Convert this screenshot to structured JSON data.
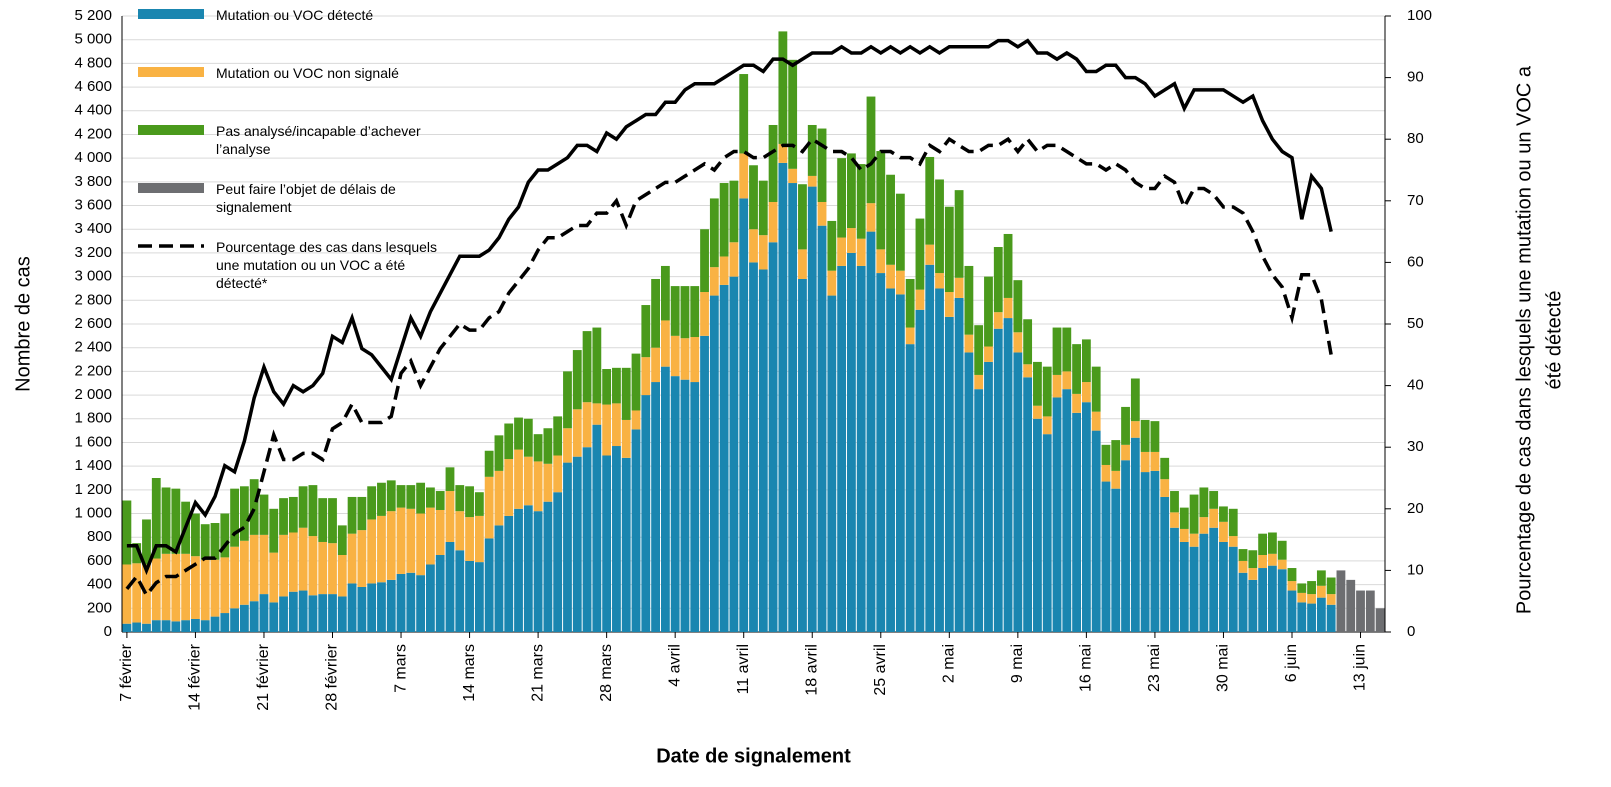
{
  "chart_data": {
    "type": "bar",
    "stacked": true,
    "xlabel": "Date de signalement",
    "ylabel": "Nombre de cas",
    "y2label": [
      "Pourcentage de cas dans lesquels une mutation ou un VOC a",
      "été détecté"
    ],
    "categories": [
      "7 février",
      null,
      null,
      null,
      null,
      null,
      null,
      "14 février",
      null,
      null,
      null,
      null,
      null,
      null,
      "21 février",
      null,
      null,
      null,
      null,
      null,
      null,
      "28 février",
      null,
      null,
      null,
      null,
      null,
      null,
      "7 mars",
      null,
      null,
      null,
      null,
      null,
      null,
      "14 mars",
      null,
      null,
      null,
      null,
      null,
      null,
      "21 mars",
      null,
      null,
      null,
      null,
      null,
      null,
      "28 mars",
      null,
      null,
      null,
      null,
      null,
      null,
      "4 avril",
      null,
      null,
      null,
      null,
      null,
      null,
      "11 avril",
      null,
      null,
      null,
      null,
      null,
      null,
      "18 avril",
      null,
      null,
      null,
      null,
      null,
      null,
      "25 avril",
      null,
      null,
      null,
      null,
      null,
      null,
      "2 mai",
      null,
      null,
      null,
      null,
      null,
      null,
      "9 mai",
      null,
      null,
      null,
      null,
      null,
      null,
      "16 mai",
      null,
      null,
      null,
      null,
      null,
      null,
      "23 mai",
      null,
      null,
      null,
      null,
      null,
      null,
      "30 mai",
      null,
      null,
      null,
      null,
      null,
      null,
      "6 juin",
      null,
      null,
      null,
      null,
      null,
      null,
      "13 juin",
      null,
      null
    ],
    "ylim": [
      0,
      5200
    ],
    "yticks": [
      0,
      200,
      400,
      600,
      800,
      {
        "value": 1000,
        "label": "1 000"
      },
      {
        "value": 1200,
        "label": "1 200"
      },
      {
        "value": 1400,
        "label": "1 400"
      },
      {
        "value": 1600,
        "label": "1 600"
      },
      {
        "value": 1800,
        "label": "1 800"
      },
      {
        "value": 2000,
        "label": "2 000"
      },
      {
        "value": 2200,
        "label": "2 200"
      },
      {
        "value": 2400,
        "label": "2 400"
      },
      {
        "value": 2600,
        "label": "2 600"
      },
      {
        "value": 2800,
        "label": "2 800"
      },
      {
        "value": 3000,
        "label": "3 000"
      },
      {
        "value": 3200,
        "label": "3 200"
      },
      {
        "value": 3400,
        "label": "3 400"
      },
      {
        "value": 3600,
        "label": "3 600"
      },
      {
        "value": 3800,
        "label": "3 800"
      },
      {
        "value": 4000,
        "label": "4 000"
      },
      {
        "value": 4200,
        "label": "4 200"
      },
      {
        "value": 4400,
        "label": "4 400"
      },
      {
        "value": 4600,
        "label": "4 600"
      },
      {
        "value": 4800,
        "label": "4 800"
      },
      {
        "value": 5000,
        "label": "5 000"
      },
      {
        "value": 5200,
        "label": "5 200"
      }
    ],
    "y2lim": [
      0,
      100
    ],
    "y2ticks": [
      0,
      10,
      20,
      30,
      40,
      50,
      60,
      70,
      80,
      90,
      100
    ],
    "grid": true,
    "series": [
      {
        "name": "Mutation ou VOC détecté",
        "color": "#1a86b0",
        "values": [
          70,
          80,
          70,
          100,
          100,
          90,
          100,
          110,
          100,
          130,
          160,
          200,
          230,
          260,
          320,
          250,
          300,
          340,
          350,
          310,
          320,
          320,
          300,
          410,
          380,
          410,
          420,
          440,
          490,
          500,
          480,
          570,
          650,
          760,
          690,
          600,
          590,
          790,
          900,
          980,
          1040,
          1070,
          1020,
          1100,
          1180,
          1430,
          1480,
          1560,
          1750,
          1490,
          1570,
          1470,
          1710,
          2000,
          2110,
          2240,
          2160,
          2130,
          2110,
          2500,
          2840,
          2930,
          3000,
          3660,
          3120,
          3060,
          3290,
          3960,
          3790,
          2980,
          3760,
          3430,
          2840,
          3090,
          3200,
          3090,
          3380,
          3030,
          2900,
          2850,
          2430,
          2720,
          3100,
          2900,
          2660,
          2820,
          2360,
          2050,
          2280,
          2560,
          2650,
          2360,
          2150,
          1800,
          1670,
          1980,
          2050,
          1850,
          1940,
          1700,
          1270,
          1210,
          1450,
          1640,
          1350,
          1360,
          1140,
          880,
          760,
          720,
          830,
          880,
          760,
          720,
          500,
          440,
          540,
          560,
          530,
          350,
          250,
          240,
          290,
          230,
          null,
          null,
          null,
          null,
          null
        ]
      },
      {
        "name": "Mutation ou VOC non signalé",
        "color": "#f9b243",
        "values": [
          500,
          500,
          500,
          520,
          560,
          570,
          560,
          530,
          510,
          480,
          470,
          520,
          540,
          560,
          500,
          420,
          520,
          500,
          530,
          500,
          440,
          430,
          350,
          420,
          480,
          540,
          560,
          580,
          560,
          540,
          520,
          480,
          380,
          430,
          330,
          370,
          390,
          520,
          460,
          480,
          500,
          410,
          420,
          320,
          310,
          290,
          400,
          380,
          180,
          430,
          360,
          320,
          160,
          320,
          290,
          390,
          340,
          350,
          380,
          370,
          240,
          240,
          290,
          380,
          280,
          290,
          340,
          160,
          120,
          250,
          90,
          200,
          210,
          240,
          210,
          230,
          240,
          200,
          200,
          200,
          140,
          170,
          170,
          130,
          210,
          170,
          150,
          120,
          130,
          140,
          170,
          170,
          110,
          110,
          150,
          190,
          150,
          160,
          170,
          160,
          140,
          150,
          130,
          140,
          170,
          160,
          150,
          130,
          110,
          110,
          140,
          160,
          170,
          90,
          100,
          100,
          110,
          100,
          80,
          80,
          80,
          80,
          100,
          90,
          null,
          null,
          null,
          null,
          null
        ]
      },
      {
        "name": "Pas analysé/incapable d’achever l’analyse",
        "color": "#4a9a1c",
        "values": [
          540,
          170,
          380,
          680,
          560,
          550,
          440,
          360,
          300,
          310,
          370,
          490,
          460,
          470,
          340,
          370,
          310,
          300,
          350,
          430,
          370,
          380,
          250,
          310,
          280,
          280,
          280,
          260,
          190,
          200,
          260,
          170,
          160,
          200,
          220,
          260,
          200,
          220,
          300,
          300,
          270,
          320,
          230,
          300,
          330,
          480,
          500,
          600,
          640,
          300,
          300,
          440,
          480,
          440,
          580,
          460,
          420,
          440,
          430,
          530,
          580,
          620,
          520,
          670,
          540,
          460,
          650,
          950,
          920,
          550,
          430,
          620,
          420,
          670,
          630,
          630,
          900,
          830,
          760,
          650,
          410,
          600,
          740,
          790,
          720,
          740,
          580,
          420,
          590,
          550,
          540,
          440,
          380,
          370,
          420,
          400,
          370,
          420,
          360,
          380,
          170,
          260,
          320,
          360,
          270,
          260,
          180,
          180,
          180,
          330,
          250,
          150,
          130,
          230,
          100,
          150,
          180,
          180,
          160,
          110,
          80,
          110,
          130,
          140,
          null,
          null,
          null,
          null,
          null
        ]
      },
      {
        "name": "Peut faire l’objet de délais de signalement",
        "color": "#6d6e71",
        "values": [
          null,
          null,
          null,
          null,
          null,
          null,
          null,
          null,
          null,
          null,
          null,
          null,
          null,
          null,
          null,
          null,
          null,
          null,
          null,
          null,
          null,
          null,
          null,
          null,
          null,
          null,
          null,
          null,
          null,
          null,
          null,
          null,
          null,
          null,
          null,
          null,
          null,
          null,
          null,
          null,
          null,
          null,
          null,
          null,
          null,
          null,
          null,
          null,
          null,
          null,
          null,
          null,
          null,
          null,
          null,
          null,
          null,
          null,
          null,
          null,
          null,
          null,
          null,
          null,
          null,
          null,
          null,
          null,
          null,
          null,
          null,
          null,
          null,
          null,
          null,
          null,
          null,
          null,
          null,
          null,
          null,
          null,
          null,
          null,
          null,
          null,
          null,
          null,
          null,
          null,
          null,
          null,
          null,
          null,
          null,
          null,
          null,
          null,
          null,
          null,
          null,
          null,
          null,
          null,
          null,
          null,
          null,
          null,
          null,
          null,
          null,
          null,
          null,
          null,
          null,
          null,
          null,
          null,
          null,
          null,
          null,
          null,
          null,
          null,
          520,
          440,
          350,
          350,
          200
        ]
      },
      {
        "name": "Pourcentage des cas dans lesquels une mutation ou un VOC a été détecté*",
        "type": "line",
        "axis": "y2",
        "style": "dashed",
        "color": "#000000",
        "values": [
          7,
          9,
          6,
          8,
          9,
          9,
          10,
          11,
          12,
          12,
          14,
          16,
          17,
          20,
          26,
          32,
          28,
          28,
          29,
          29,
          28,
          33,
          34,
          37,
          34,
          34,
          34,
          35,
          42,
          44,
          40,
          43,
          46,
          48,
          50,
          49,
          49,
          51,
          52,
          55,
          57,
          59,
          62,
          64,
          64,
          65,
          66,
          66,
          68,
          68,
          70,
          66,
          70,
          71,
          72,
          73,
          73,
          74,
          75,
          76,
          75,
          77,
          78,
          78,
          77,
          77,
          78,
          79,
          79,
          78,
          80,
          79,
          78,
          78,
          77,
          75,
          76,
          78,
          78,
          77,
          77,
          76,
          79,
          78,
          80,
          79,
          78,
          78,
          79,
          79,
          80,
          78,
          80,
          78,
          79,
          79,
          78,
          77,
          76,
          76,
          75,
          76,
          75,
          73,
          72,
          72,
          74,
          73,
          69,
          72,
          72,
          71,
          69,
          69,
          68,
          65,
          61,
          58,
          56,
          51,
          58,
          58,
          54,
          45,
          null,
          null,
          null,
          null,
          null
        ]
      },
      {
        "type": "line",
        "axis": "y2",
        "style": "solid",
        "color": "#000000",
        "values": [
          14,
          14,
          10,
          14,
          14,
          13,
          17,
          21,
          19,
          22,
          27,
          26,
          31,
          38,
          43,
          39,
          37,
          40,
          39,
          40,
          42,
          48,
          47,
          51,
          46,
          45,
          43,
          41,
          46,
          51,
          48,
          52,
          55,
          58,
          61,
          61,
          61,
          62,
          64,
          67,
          69,
          73,
          75,
          75,
          76,
          77,
          79,
          79,
          78,
          81,
          80,
          82,
          83,
          84,
          84,
          86,
          86,
          88,
          89,
          89,
          89,
          90,
          91,
          92,
          92,
          91,
          93,
          93,
          92,
          93,
          94,
          94,
          94,
          95,
          94,
          94,
          95,
          94,
          95,
          94,
          95,
          94,
          95,
          94,
          95,
          95,
          95,
          95,
          95,
          96,
          96,
          95,
          96,
          94,
          94,
          93,
          94,
          93,
          91,
          91,
          92,
          92,
          90,
          90,
          89,
          87,
          88,
          89,
          85,
          88,
          88,
          88,
          88,
          87,
          86,
          87,
          83,
          80,
          78,
          77,
          67,
          74,
          72,
          65,
          null,
          null,
          null,
          null,
          null
        ]
      }
    ]
  }
}
